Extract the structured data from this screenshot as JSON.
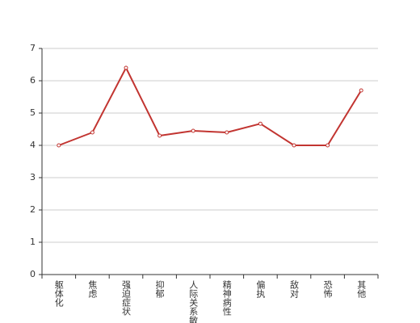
{
  "chart_data": {
    "type": "line",
    "categories": [
      "躯体化",
      "焦虑",
      "强迫症状",
      "抑郁",
      "人际关系敏感",
      "精神病性",
      "偏执",
      "敌对",
      "恐怖",
      "其他"
    ],
    "values": [
      4.0,
      4.4,
      6.4,
      4.3,
      4.45,
      4.4,
      4.67,
      4.0,
      4.0,
      5.7
    ],
    "color": "#c23531",
    "ylim": [
      0,
      7
    ],
    "yticks": [
      0,
      1,
      2,
      3,
      4,
      5,
      6,
      7
    ],
    "grid": true
  }
}
